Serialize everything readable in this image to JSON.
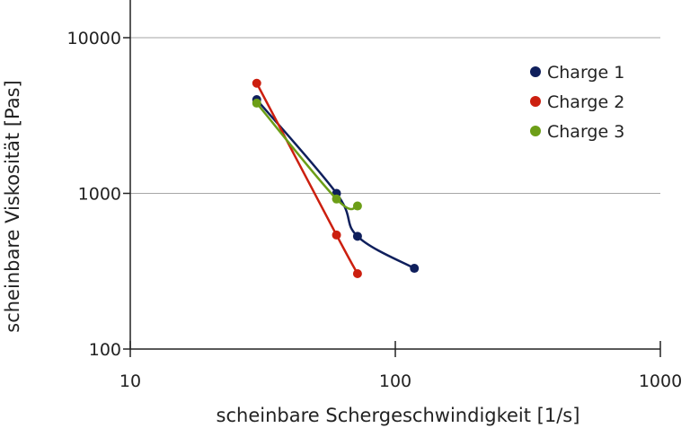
{
  "chart_data": {
    "type": "line",
    "title": "",
    "xlabel": "scheinbare Schergeschwindigkeit [1/s]",
    "ylabel": "scheinbare Viskosität [Pas]",
    "xscale": "log",
    "yscale": "log",
    "xlim": [
      10,
      1000
    ],
    "ylim": [
      100,
      10000
    ],
    "xticks": [
      "10",
      "100",
      "1000"
    ],
    "yticks": [
      "100",
      "1000",
      "10000"
    ],
    "grid": "horizontal major gridlines",
    "legend_position": "top-right",
    "series": [
      {
        "name": "Charge 1",
        "color": "#0f1f5c",
        "x": [
          30,
          60,
          72,
          118
        ],
        "y": [
          4000,
          1000,
          530,
          330
        ]
      },
      {
        "name": "Charge 2",
        "color": "#cc1f0f",
        "x": [
          30,
          60,
          72
        ],
        "y": [
          5100,
          540,
          305
        ]
      },
      {
        "name": "Charge 3",
        "color": "#6c9e17",
        "x": [
          30,
          60,
          72
        ],
        "y": [
          3800,
          920,
          830
        ]
      }
    ]
  }
}
